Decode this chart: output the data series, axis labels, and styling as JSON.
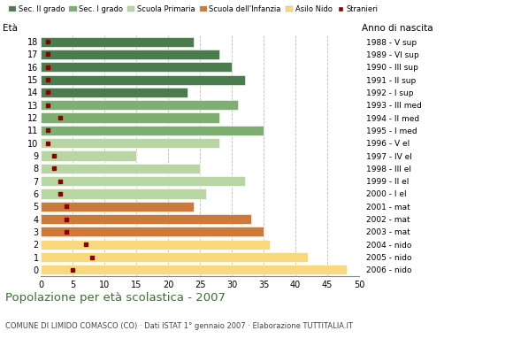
{
  "ages": [
    18,
    17,
    16,
    15,
    14,
    13,
    12,
    11,
    10,
    9,
    8,
    7,
    6,
    5,
    4,
    3,
    2,
    1,
    0
  ],
  "anni": [
    "1988 - V sup",
    "1989 - VI sup",
    "1990 - III sup",
    "1991 - II sup",
    "1992 - I sup",
    "1993 - III med",
    "1994 - II med",
    "1995 - I med",
    "1996 - V el",
    "1997 - IV el",
    "1998 - III el",
    "1999 - II el",
    "2000 - I el",
    "2001 - mat",
    "2002 - mat",
    "2003 - mat",
    "2004 - nido",
    "2005 - nido",
    "2006 - nido"
  ],
  "bar_values": [
    24,
    28,
    30,
    32,
    23,
    31,
    28,
    35,
    28,
    15,
    25,
    32,
    26,
    24,
    33,
    35,
    36,
    42,
    48
  ],
  "stranieri": [
    1,
    1,
    1,
    1,
    1,
    1,
    3,
    1,
    1,
    2,
    2,
    3,
    3,
    4,
    4,
    4,
    7,
    8,
    5
  ],
  "bar_colors": [
    "#4a7c4e",
    "#4a7c4e",
    "#4a7c4e",
    "#4a7c4e",
    "#4a7c4e",
    "#7fae72",
    "#7fae72",
    "#7fae72",
    "#b8d6a3",
    "#b8d6a3",
    "#b8d6a3",
    "#b8d6a3",
    "#b8d6a3",
    "#cc7a3a",
    "#cc7a3a",
    "#cc7a3a",
    "#f9d87e",
    "#f9d87e",
    "#f9d87e"
  ],
  "stranieri_color": "#8b0000",
  "title": "Popolazione per età scolastica - 2007",
  "subtitle": "COMUNE DI LIMIDO COMASCO (CO) · Dati ISTAT 1° gennaio 2007 · Elaborazione TUTTITALIA.IT",
  "xlabel_eta": "Età",
  "xlabel_anno": "Anno di nascita",
  "xlim": [
    0,
    50
  ],
  "xticks": [
    0,
    5,
    10,
    15,
    20,
    25,
    30,
    35,
    40,
    45,
    50
  ],
  "background_color": "#ffffff",
  "grid_color": "#bbbbbb",
  "legend_labels": [
    "Sec. II grado",
    "Sec. I grado",
    "Scuola Primaria",
    "Scuola dell'Infanzia",
    "Asilo Nido",
    "Stranieri"
  ],
  "legend_colors": [
    "#4a7c4e",
    "#7fae72",
    "#b8d6a3",
    "#cc7a3a",
    "#f9d87e",
    "#8b0000"
  ]
}
